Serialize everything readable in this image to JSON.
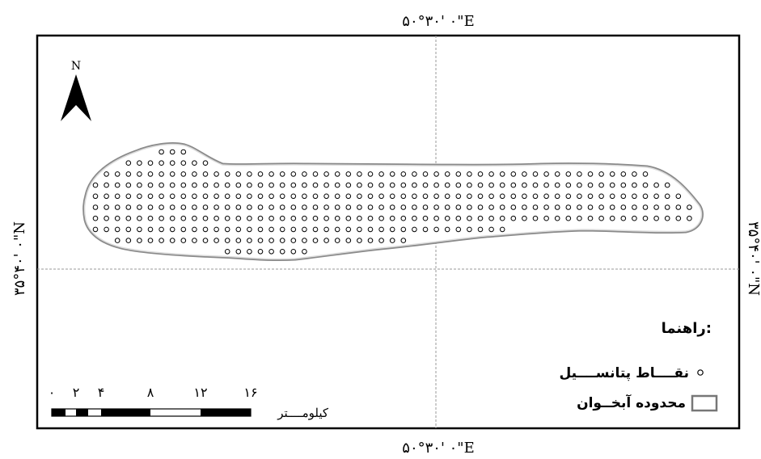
{
  "graticule": {
    "lon_top": "۵۰°۳۰' ۰\"E",
    "lon_bottom": "۵۰°۳۰' ۰\"E",
    "lat_left": "۳۵°۴۰' ۰\"N",
    "lat_right": "۳۵°۴۰' ۰\"N"
  },
  "north_arrow": {
    "label": "N",
    "icon": "north-arrow-icon"
  },
  "legend": {
    "title": "راهنما:",
    "items": [
      {
        "label": "نقــــاط پتانســــیل",
        "symbol": "hollow-circle"
      },
      {
        "label": "محدوده آبخــوان",
        "symbol": "boundary-box"
      }
    ]
  },
  "scale_bar": {
    "ticks": [
      "۰",
      "۲",
      "۴",
      "۸",
      "۱۲",
      "۱۶"
    ],
    "unit": "کیلومــــتر"
  },
  "colors": {
    "boundary": "#808080",
    "points": "#000000",
    "frame": "#000000",
    "grid": "#9a9a9a"
  }
}
